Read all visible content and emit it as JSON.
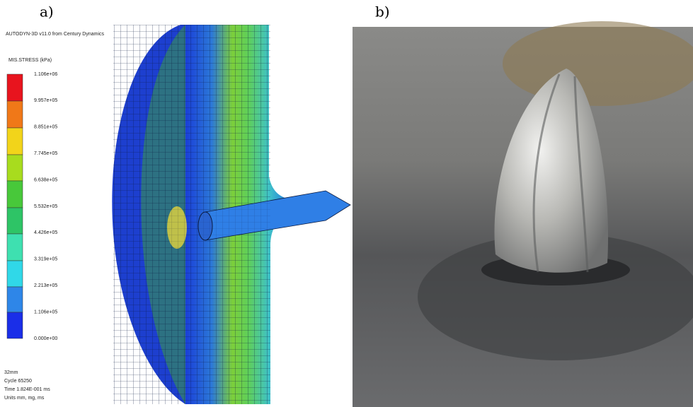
{
  "panels": [
    {
      "label": "a)",
      "header": "AUTODYN-3D v11.0 from Century Dynamics",
      "legend": {
        "title": "MIS.STRESS (kPa)",
        "labels": [
          "1.106e+06",
          "9.957e+05",
          "8.851e+05",
          "7.745e+05",
          "6.638e+05",
          "5.532e+05",
          "4.426e+05",
          "3.319e+05",
          "2.213e+05",
          "1.106e+05",
          "0.000e+00"
        ]
      },
      "footer": [
        "32mm",
        "Cycle 65250",
        "Time 1.824E-001 ms",
        "Units mm, mg, ms"
      ]
    },
    {
      "label": "b)"
    }
  ]
}
